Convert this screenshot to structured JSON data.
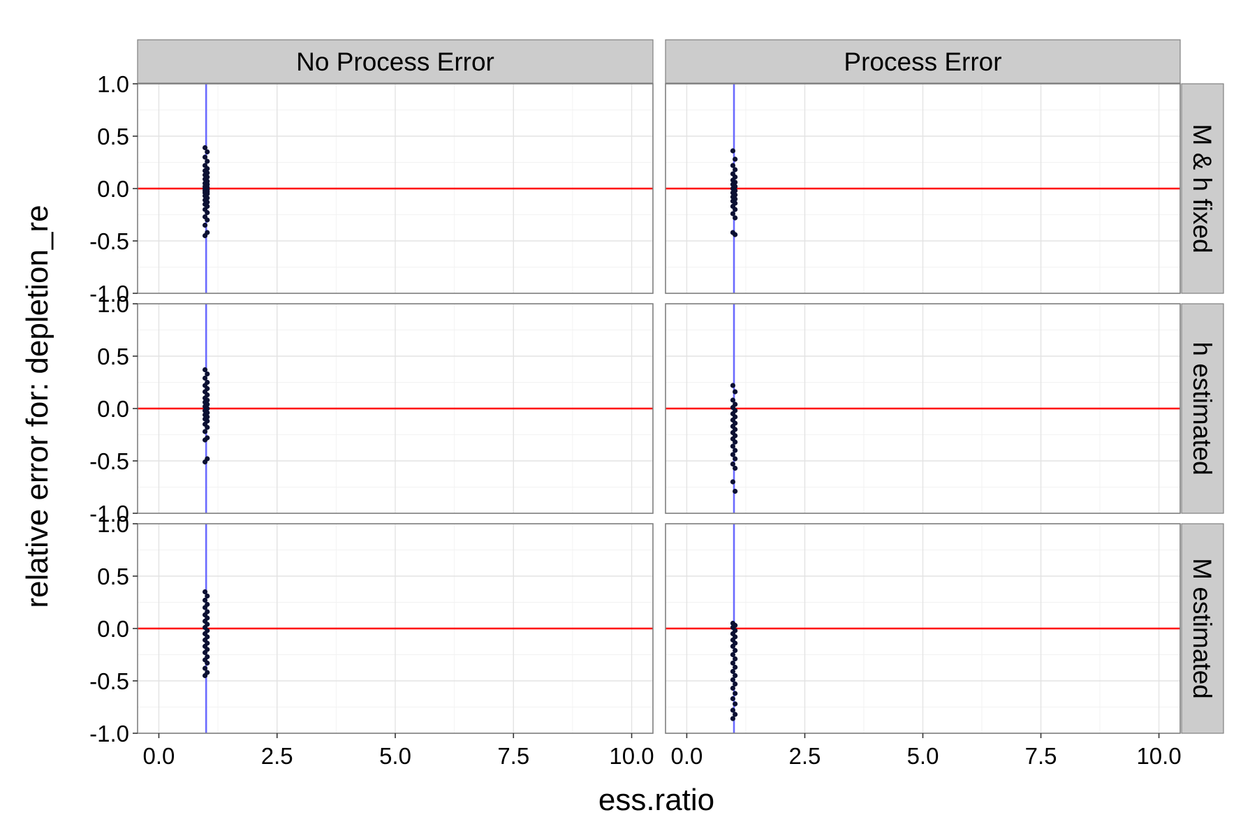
{
  "chart_data": {
    "type": "scatter",
    "xlabel": "ess.ratio",
    "ylabel": "relative error for: depletion_re",
    "xlim": [
      -0.45,
      10.45
    ],
    "ylim": [
      -1.0,
      1.0
    ],
    "x_ticks": [
      "0.0",
      "2.5",
      "5.0",
      "7.5",
      "10.0"
    ],
    "x_tick_values": [
      0,
      2.5,
      5,
      7.5,
      10
    ],
    "y_ticks": [
      "-1.0",
      "-0.5",
      "0.0",
      "0.5",
      "1.0"
    ],
    "y_tick_values": [
      -1,
      -0.5,
      0,
      0.5,
      1
    ],
    "grid": true,
    "column_facets": [
      "No Process Error",
      "Process Error"
    ],
    "row_facets": [
      "M & h fixed",
      "h estimated",
      "M estimated"
    ],
    "reference_lines": {
      "horizontal": {
        "y": 0,
        "color": "#ff0000"
      },
      "vertical": {
        "x": 1,
        "color": "#6b6bff"
      }
    },
    "point_color": "#0b1033",
    "panels": [
      {
        "row": 0,
        "col": 0,
        "x": 1,
        "y": [
          0.39,
          0.35,
          0.3,
          0.26,
          0.22,
          0.19,
          0.17,
          0.15,
          0.13,
          0.11,
          0.09,
          0.07,
          0.05,
          0.04,
          0.02,
          0.01,
          0.0,
          -0.01,
          -0.02,
          -0.03,
          -0.04,
          -0.05,
          -0.07,
          -0.09,
          -0.11,
          -0.13,
          -0.15,
          -0.17,
          -0.2,
          -0.23,
          -0.27,
          -0.3,
          -0.35,
          -0.42,
          -0.45
        ]
      },
      {
        "row": 0,
        "col": 1,
        "x": 1,
        "y": [
          0.36,
          0.28,
          0.22,
          0.18,
          0.14,
          0.11,
          0.08,
          0.06,
          0.04,
          0.02,
          0.0,
          -0.02,
          -0.04,
          -0.06,
          -0.08,
          -0.1,
          -0.12,
          -0.14,
          -0.17,
          -0.2,
          -0.24,
          -0.28,
          -0.42,
          -0.44
        ]
      },
      {
        "row": 1,
        "col": 0,
        "x": 1,
        "y": [
          0.37,
          0.33,
          0.29,
          0.25,
          0.22,
          0.19,
          0.16,
          0.13,
          0.1,
          0.08,
          0.06,
          0.04,
          0.02,
          0.0,
          -0.02,
          -0.04,
          -0.06,
          -0.08,
          -0.1,
          -0.12,
          -0.15,
          -0.18,
          -0.22,
          -0.28,
          -0.3,
          -0.48,
          -0.51
        ]
      },
      {
        "row": 1,
        "col": 1,
        "x": 1,
        "y": [
          0.22,
          0.16,
          0.08,
          0.04,
          0.01,
          -0.02,
          -0.05,
          -0.08,
          -0.11,
          -0.14,
          -0.17,
          -0.2,
          -0.23,
          -0.26,
          -0.29,
          -0.32,
          -0.36,
          -0.4,
          -0.44,
          -0.48,
          -0.53,
          -0.57,
          -0.7,
          -0.79
        ]
      },
      {
        "row": 2,
        "col": 0,
        "x": 1,
        "y": [
          0.35,
          0.31,
          0.27,
          0.23,
          0.2,
          0.16,
          0.13,
          0.1,
          0.07,
          0.04,
          0.01,
          -0.02,
          -0.05,
          -0.08,
          -0.11,
          -0.14,
          -0.17,
          -0.2,
          -0.23,
          -0.27,
          -0.3,
          -0.33,
          -0.38,
          -0.42,
          -0.45
        ]
      },
      {
        "row": 2,
        "col": 1,
        "x": 1,
        "y": [
          0.05,
          0.03,
          0.01,
          -0.02,
          -0.05,
          -0.08,
          -0.11,
          -0.14,
          -0.17,
          -0.21,
          -0.25,
          -0.29,
          -0.33,
          -0.37,
          -0.41,
          -0.45,
          -0.49,
          -0.53,
          -0.57,
          -0.62,
          -0.67,
          -0.72,
          -0.78,
          -0.82,
          -0.86
        ]
      }
    ]
  }
}
